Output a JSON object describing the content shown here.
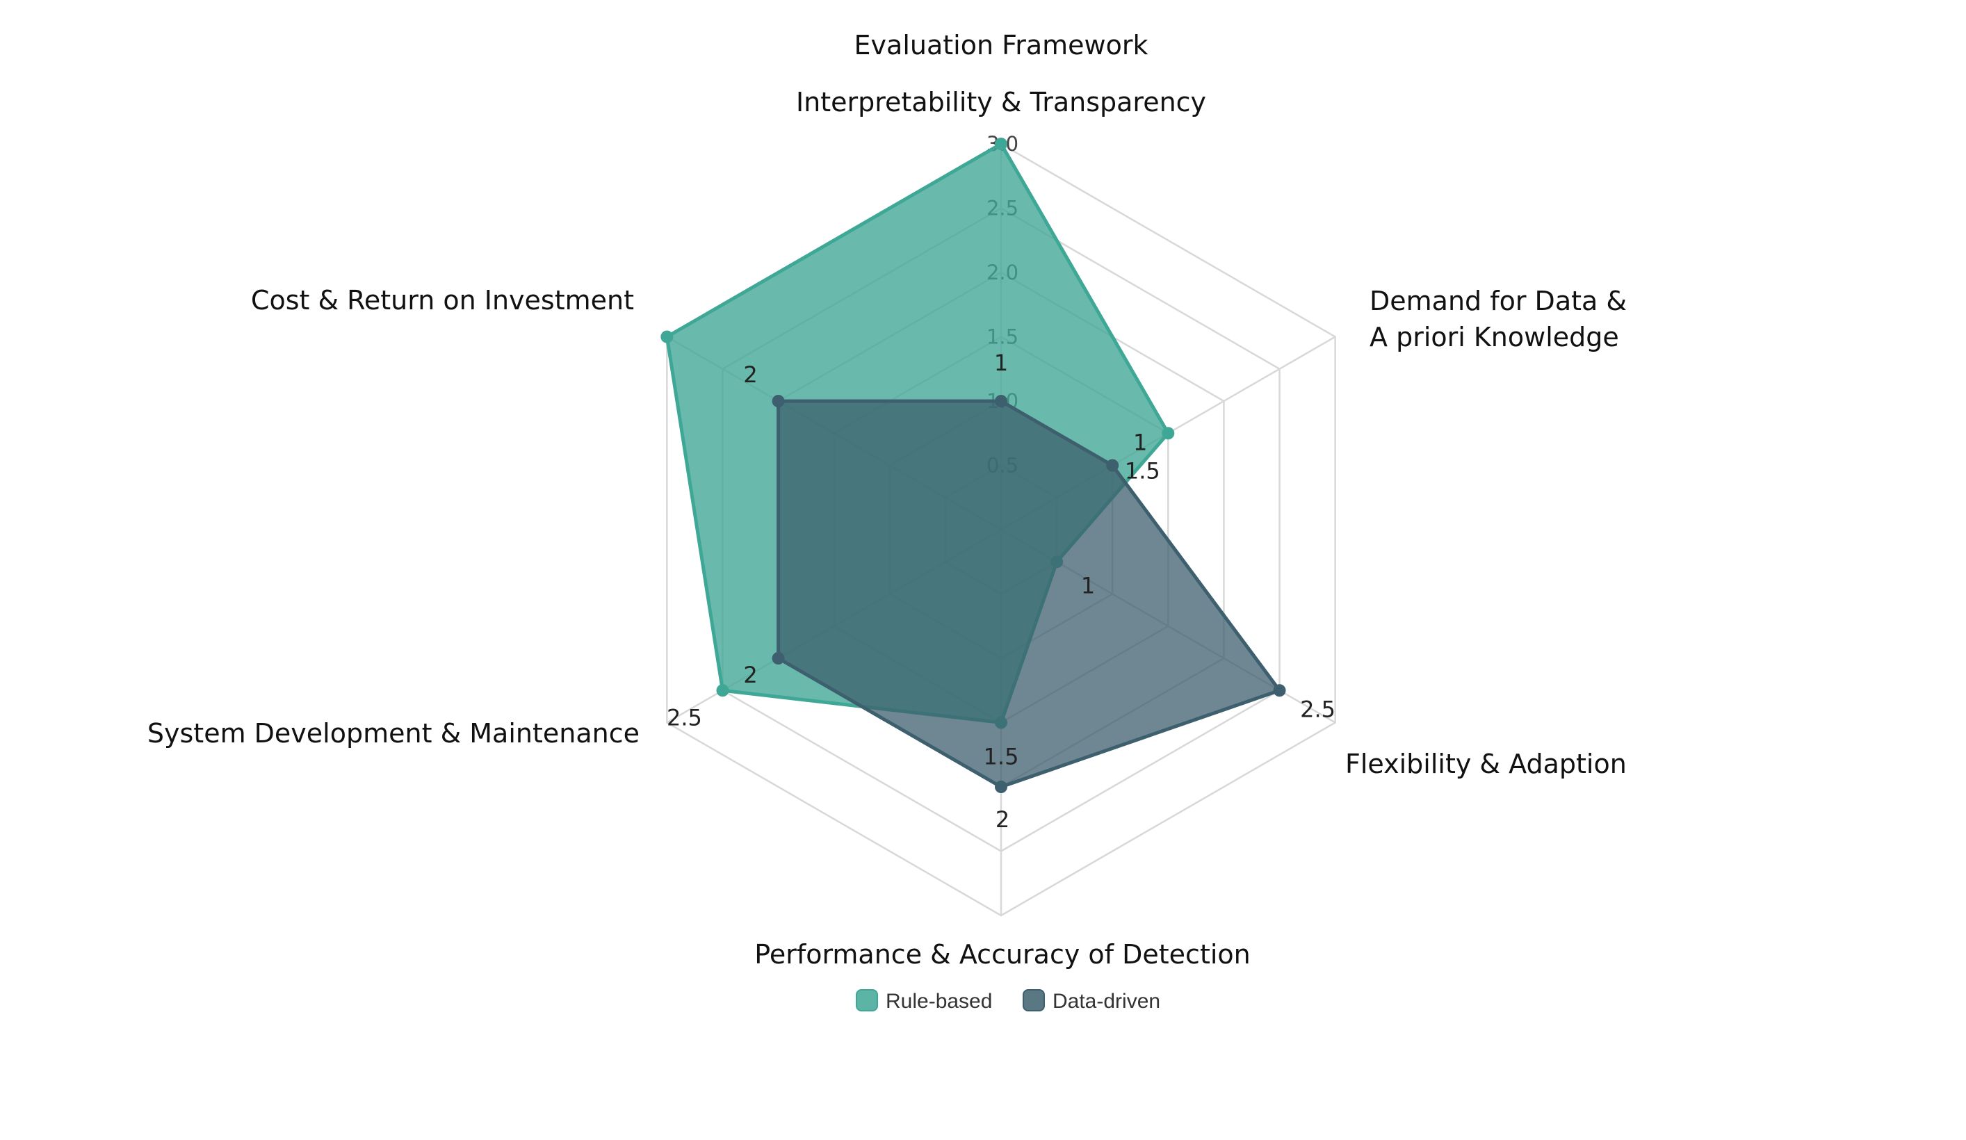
{
  "chart_data": {
    "type": "radar",
    "title": "Evaluation Framework",
    "axes": [
      [
        "Interpretability & Transparency"
      ],
      [
        "Demand for Data &",
        "A priori Knowledge"
      ],
      [
        "Flexibility & Adaption"
      ],
      [
        "Performance & Accuracy of Detection"
      ],
      [
        "System Development & Maintenance"
      ],
      [
        "Cost & Return on Investment"
      ]
    ],
    "rlim": [
      0,
      3.0
    ],
    "r_ticks": [
      "0.5",
      "1.0",
      "1.5",
      "2.0",
      "2.5",
      "3.0"
    ],
    "grid": true,
    "legend_position": "bottom",
    "series": [
      {
        "name": "Rule-based",
        "color": "#3fa796",
        "values": [
          3,
          1.5,
          0.5,
          1.5,
          2.5,
          3
        ],
        "data_labels": [
          "",
          "1.5",
          "",
          "1.5",
          "2.5",
          ""
        ]
      },
      {
        "name": "Data-driven",
        "color": "#3d5f6e",
        "values": [
          1,
          1,
          2.5,
          2,
          2,
          2
        ],
        "data_labels": [
          "1",
          "1",
          "2.5",
          "2",
          "2",
          "2"
        ]
      }
    ],
    "extra_labels": [
      "1"
    ]
  }
}
